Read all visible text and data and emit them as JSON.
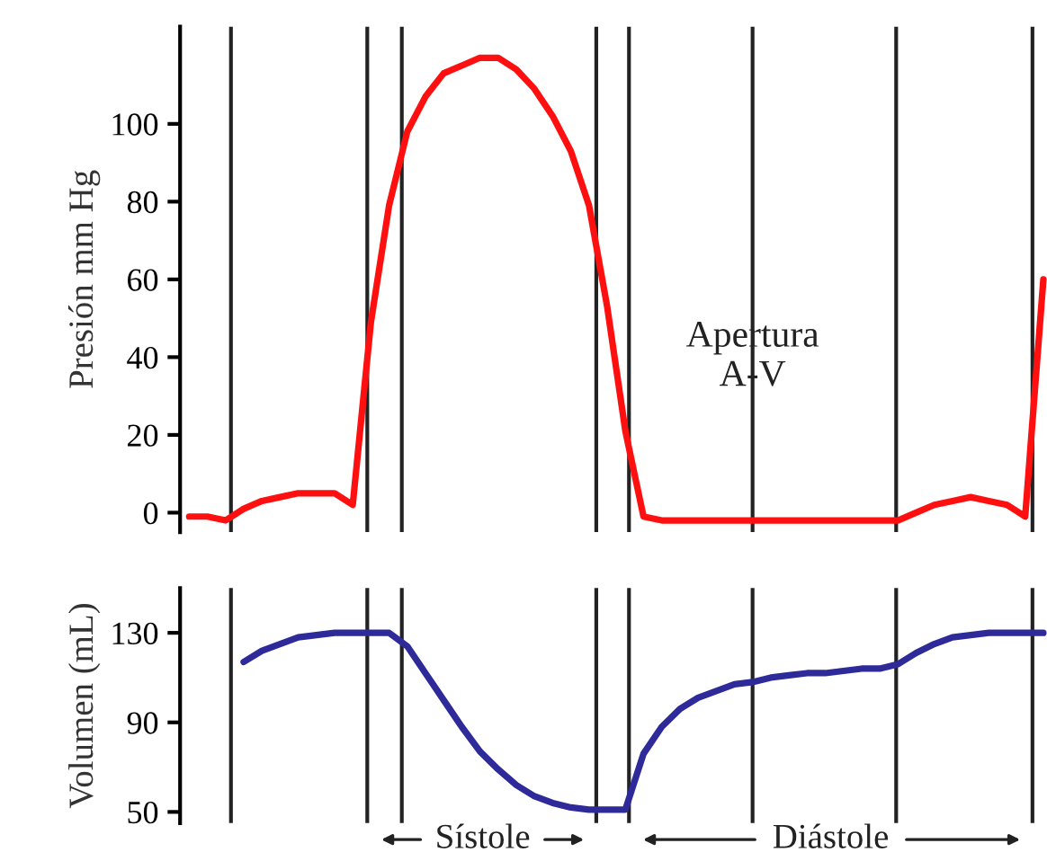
{
  "chart_data": [
    {
      "type": "line",
      "ylabel": "Presión mm Hg",
      "categories": [
        null,
        null,
        null,
        null,
        null,
        null,
        null,
        null,
        null,
        null,
        null,
        null,
        null,
        null,
        null,
        null,
        null,
        null,
        null,
        null,
        null,
        null,
        null,
        null,
        null,
        null,
        null,
        null,
        null,
        null,
        null,
        null,
        null,
        null,
        null,
        null,
        null,
        null,
        null,
        null,
        null,
        null,
        null,
        null,
        null,
        null,
        null,
        null
      ],
      "series": [
        {
          "color": "#ff1010",
          "values": [
            -1,
            -1,
            -2,
            1,
            3,
            4,
            5,
            5,
            5,
            2,
            49,
            79,
            98,
            107,
            113,
            115,
            117,
            117,
            114,
            109,
            102,
            93,
            79,
            53,
            21,
            -1,
            -2,
            -2,
            -2,
            -2,
            -2,
            -2,
            -2,
            -2,
            -2,
            -2,
            -2,
            -2,
            -2,
            -2,
            0,
            2,
            3,
            4,
            3,
            2,
            -1,
            60
          ]
        }
      ],
      "ylim": [
        -5,
        125
      ],
      "yticks": [
        0,
        20,
        40,
        60,
        80,
        100
      ],
      "tick_labels": "y",
      "grid": false,
      "legend": false,
      "annotations": [
        "Apertura\nA-V"
      ]
    },
    {
      "type": "line",
      "ylabel": "Volumen (mL)",
      "categories": [
        null,
        null,
        null,
        null,
        null,
        null,
        null,
        null,
        null,
        null,
        null,
        null,
        null,
        null,
        null,
        null,
        null,
        null,
        null,
        null,
        null,
        null,
        null,
        null,
        null,
        null,
        null,
        null,
        null,
        null,
        null,
        null,
        null,
        null,
        null,
        null,
        null,
        null,
        null,
        null,
        null,
        null,
        null,
        null,
        null,
        null,
        null,
        null
      ],
      "series": [
        {
          "color": "#2e2a9a",
          "values": [
            null,
            null,
            null,
            117,
            122,
            125,
            128,
            129,
            130,
            130,
            130,
            130,
            124,
            112,
            100,
            88,
            77,
            69,
            62,
            57,
            54,
            52,
            51,
            51,
            51,
            76,
            88,
            96,
            101,
            104,
            107,
            108,
            110,
            111,
            112,
            112,
            113,
            114,
            114,
            116,
            121,
            125,
            128,
            129,
            130,
            130,
            130,
            130
          ]
        }
      ],
      "ylim": [
        45,
        150
      ],
      "yticks": [
        50,
        90,
        130
      ],
      "tick_labels": "y",
      "grid": false,
      "legend": false,
      "annotations": [
        "Sístole",
        "Diástole"
      ]
    }
  ]
}
